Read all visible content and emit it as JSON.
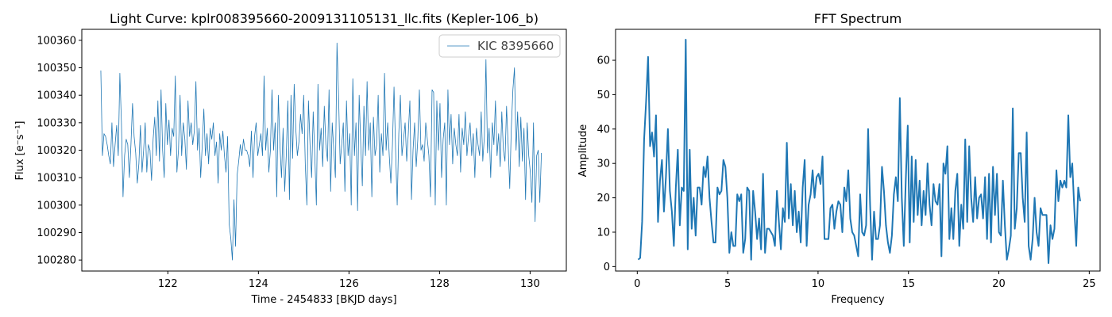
{
  "chart_data": [
    {
      "type": "line",
      "title": "Light Curve: kplr008395660-2009131105131_llc.fits (Kepler-106_b)",
      "xlabel": "Time - 2454833 [BKJD days]",
      "ylabel": "Flux [e⁻s⁻¹]",
      "xlim": [
        120.1,
        130.8
      ],
      "ylim": [
        100276,
        100364
      ],
      "xticks": [
        122,
        124,
        126,
        128,
        130
      ],
      "yticks": [
        100280,
        100290,
        100300,
        100310,
        100320,
        100330,
        100340,
        100350,
        100360
      ],
      "grid": false,
      "legend": "top-right",
      "color": "#1f77b4",
      "series": [
        {
          "name": "KIC 8395660",
          "x_start": 120.52,
          "x_end": 130.25,
          "y": [
            100349,
            100318,
            100326,
            100325,
            100322,
            100318,
            100315,
            100330,
            100314,
            100322,
            100329,
            100318,
            100348,
            100330,
            100303,
            100318,
            100324,
            100322,
            100310,
            100322,
            100337,
            100325,
            100319,
            100308,
            100315,
            100329,
            100312,
            100320,
            100330,
            100312,
            100322,
            100320,
            100309,
            100324,
            100332,
            100318,
            100338,
            100316,
            100342,
            100320,
            100310,
            100337,
            100322,
            100331,
            100318,
            100328,
            100325,
            100347,
            100312,
            100320,
            100340,
            100318,
            100330,
            100324,
            100313,
            100338,
            100325,
            100330,
            100322,
            100327,
            100345,
            100320,
            100328,
            100310,
            100322,
            100335,
            100318,
            100326,
            100315,
            100328,
            100324,
            100330,
            100318,
            100323,
            100308,
            100326,
            100320,
            100327,
            100318,
            100312,
            100325,
            100293,
            100288,
            100280,
            100302,
            100285,
            100311,
            100316,
            100322,
            100318,
            100324,
            100320,
            100320,
            100318,
            100314,
            100327,
            100310,
            100325,
            100330,
            100318,
            100322,
            100326,
            100318,
            100347,
            100320,
            100328,
            100312,
            100320,
            100342,
            100320,
            100330,
            100303,
            100340,
            100322,
            100310,
            100328,
            100305,
            100318,
            100338,
            100302,
            100340,
            100317,
            100344,
            100328,
            100318,
            100323,
            100333,
            100326,
            100340,
            100315,
            100300,
            100338,
            100322,
            100310,
            100334,
            100318,
            100300,
            100344,
            100320,
            100328,
            100314,
            100336,
            100322,
            100316,
            100342,
            100305,
            100330,
            100320,
            100310,
            100359,
            100340,
            100315,
            100322,
            100330,
            100305,
            100338,
            100318,
            100326,
            100300,
            100346,
            100318,
            100330,
            100298,
            100340,
            100322,
            100307,
            100336,
            100318,
            100345,
            100320,
            100330,
            100303,
            100332,
            100318,
            100322,
            100340,
            100312,
            100326,
            100318,
            100348,
            100320,
            100330,
            100318,
            100308,
            100322,
            100343,
            100320,
            100300,
            100326,
            100340,
            100318,
            100324,
            100330,
            100316,
            100326,
            100338,
            100302,
            100320,
            100330,
            100314,
            100324,
            100342,
            100320,
            100322,
            100316,
            100330,
            100324,
            100318,
            100303,
            100342,
            100341,
            100300,
            100338,
            100320,
            100337,
            100310,
            100324,
            100330,
            100300,
            100342,
            100322,
            100333,
            100315,
            100328,
            100322,
            100318,
            100333,
            100312,
            100328,
            100322,
            100334,
            100318,
            100325,
            100330,
            100318,
            100326,
            100310,
            100328,
            100322,
            100318,
            100334,
            100316,
            100325,
            100353,
            100319,
            100328,
            100310,
            100330,
            100322,
            100338,
            100318,
            100326,
            100314,
            100334,
            100320,
            100316,
            100336,
            100322,
            100306,
            100328,
            100342,
            100350,
            100320,
            100334,
            100314,
            100332,
            100316,
            100328,
            100302,
            100330,
            100318,
            100312,
            100301,
            100330,
            100294,
            100318,
            100320,
            100301,
            100319
          ]
        }
      ]
    },
    {
      "type": "line",
      "title": "FFT Spectrum",
      "xlabel": "Frequency",
      "ylabel": "Amplitude",
      "xlim": [
        -1.2,
        25.6
      ],
      "ylim": [
        -1.3,
        69
      ],
      "xticks": [
        0,
        5,
        10,
        15,
        20,
        25
      ],
      "yticks": [
        0,
        10,
        20,
        30,
        40,
        50,
        60
      ],
      "grid": false,
      "color": "#1f77b4",
      "series": [
        {
          "x_start": 0.05,
          "x_end": 24.5,
          "y": [
            2,
            2.5,
            13,
            37,
            48,
            61,
            35,
            39,
            32,
            44,
            13,
            25,
            31,
            16,
            26,
            40,
            22,
            16,
            6,
            23,
            34,
            12,
            23,
            22,
            66,
            5,
            34,
            11,
            20,
            9,
            23,
            23,
            18,
            29,
            26,
            32,
            20,
            13,
            7,
            7,
            23,
            21,
            22,
            31,
            29,
            20,
            4,
            10,
            6,
            6,
            21,
            19,
            21,
            4,
            8,
            23,
            22,
            2,
            22,
            16,
            8,
            14,
            5,
            27,
            4,
            11,
            11,
            10,
            9,
            6,
            22,
            13,
            5,
            17,
            13,
            36,
            14,
            24,
            12,
            22,
            10,
            16,
            7,
            23,
            31,
            6,
            18,
            21,
            28,
            20,
            26,
            27,
            24,
            32,
            8,
            8,
            8,
            17,
            18,
            11,
            16,
            19,
            18,
            10,
            23,
            19,
            28,
            14,
            10,
            9,
            6,
            3,
            21,
            10,
            9,
            12,
            40,
            18,
            2,
            16,
            8,
            8,
            12,
            29,
            22,
            12,
            7,
            4,
            9,
            21,
            26,
            19,
            49,
            20,
            6,
            25,
            41,
            7,
            32,
            13,
            31,
            15,
            25,
            12,
            22,
            15,
            30,
            18,
            12,
            24,
            19,
            18,
            24,
            3,
            30,
            27,
            35,
            8,
            17,
            8,
            22,
            27,
            6,
            18,
            11,
            37,
            13,
            35,
            20,
            13,
            26,
            14,
            20,
            21,
            14,
            26,
            8,
            27,
            7,
            29,
            15,
            27,
            10,
            9,
            25,
            12,
            2,
            5,
            9,
            46,
            11,
            17,
            33,
            33,
            20,
            13,
            39,
            6,
            2,
            8,
            20,
            10,
            6,
            17,
            15,
            15,
            15,
            1,
            12,
            8,
            11,
            28,
            19,
            25,
            23,
            25,
            23,
            44,
            26,
            30,
            17,
            6,
            23,
            19
          ]
        }
      ]
    }
  ]
}
